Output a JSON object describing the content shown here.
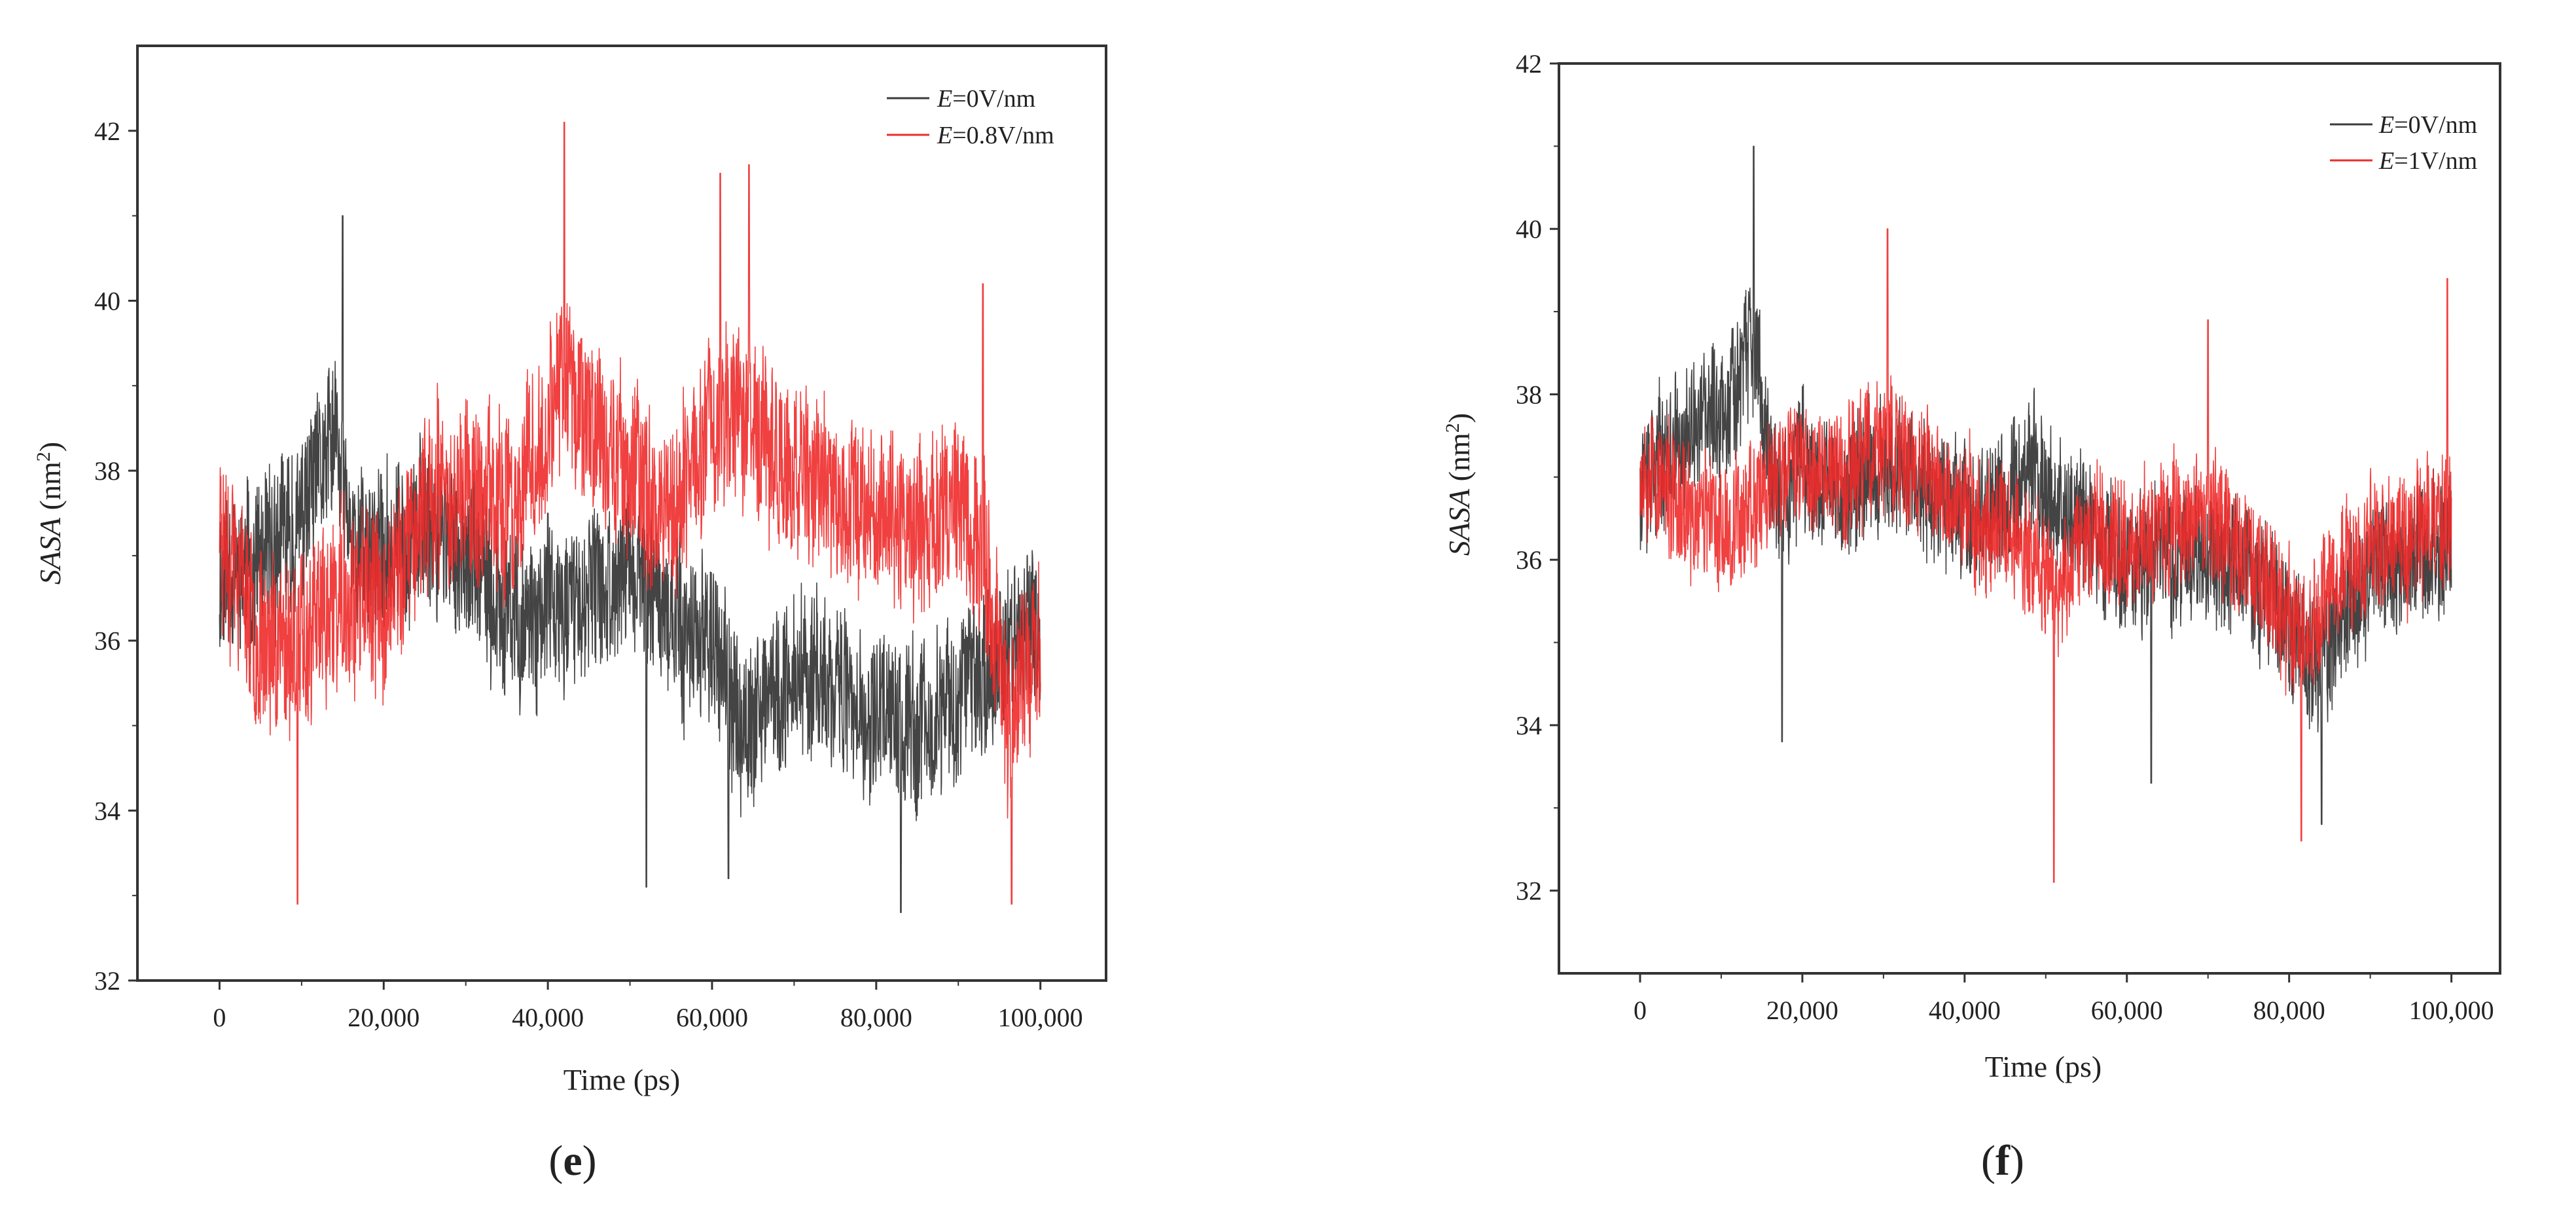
{
  "colors": {
    "series_e0": "#3a3a3a",
    "series_field": "#ee2b2b",
    "axis": "#333333",
    "background": "#ffffff"
  },
  "chart_data": [
    {
      "id": "e",
      "type": "line",
      "panel_label": "e",
      "xlabel": "Time (ps)",
      "ylabel": {
        "italic": "SASA",
        "plain": " (nm",
        "sup": "2",
        "close": ")"
      },
      "xlim": [
        -10000,
        108000
      ],
      "ylim": [
        32,
        43
      ],
      "x_ticks": [
        0,
        20000,
        40000,
        60000,
        80000,
        100000
      ],
      "x_tick_labels": [
        "0",
        "20,000",
        "40,000",
        "60,000",
        "80,000",
        "100,000"
      ],
      "y_ticks": [
        32,
        34,
        36,
        38,
        40,
        42
      ],
      "y_tick_labels": [
        "32",
        "34",
        "36",
        "38",
        "40",
        "42"
      ],
      "grid": false,
      "legend_position": "top-right",
      "series": [
        {
          "name": "E=0V/nm",
          "label_italic": "E",
          "label_rest": "=0V/nm",
          "color": "#3a3a3a",
          "x_range": [
            0,
            100000
          ],
          "noise": 1.15,
          "seed": 11,
          "anchors": [
            [
              0,
              36.8
            ],
            [
              5000,
              36.9
            ],
            [
              10000,
              37.4
            ],
            [
              14000,
              38.4
            ],
            [
              16000,
              37.2
            ],
            [
              20000,
              37.0
            ],
            [
              25000,
              37.4
            ],
            [
              30000,
              37.0
            ],
            [
              35000,
              36.2
            ],
            [
              40000,
              36.3
            ],
            [
              45000,
              36.5
            ],
            [
              50000,
              36.8
            ],
            [
              55000,
              36.2
            ],
            [
              60000,
              36.0
            ],
            [
              63000,
              35.0
            ],
            [
              70000,
              35.6
            ],
            [
              75000,
              35.5
            ],
            [
              80000,
              35.0
            ],
            [
              85000,
              35.0
            ],
            [
              90000,
              35.4
            ],
            [
              95000,
              35.8
            ],
            [
              100000,
              36.2
            ]
          ],
          "peaks": [
            [
              15000,
              41.0
            ],
            [
              40000,
              37.5
            ],
            [
              52000,
              33.1
            ],
            [
              62000,
              33.2
            ],
            [
              83000,
              32.8
            ]
          ]
        },
        {
          "name": "E=0.8V/nm",
          "label_italic": "E",
          "label_rest": "=0.8V/nm",
          "color": "#ee2b2b",
          "x_range": [
            0,
            100000
          ],
          "noise": 1.25,
          "seed": 23,
          "anchors": [
            [
              0,
              37.4
            ],
            [
              5000,
              36.0
            ],
            [
              10000,
              36.0
            ],
            [
              15000,
              36.5
            ],
            [
              20000,
              36.4
            ],
            [
              25000,
              37.6
            ],
            [
              30000,
              37.8
            ],
            [
              35000,
              37.5
            ],
            [
              40000,
              38.4
            ],
            [
              42000,
              39.3
            ],
            [
              45000,
              38.5
            ],
            [
              50000,
              38.0
            ],
            [
              55000,
              37.6
            ],
            [
              60000,
              38.6
            ],
            [
              63000,
              38.8
            ],
            [
              65000,
              38.5
            ],
            [
              70000,
              37.9
            ],
            [
              75000,
              37.7
            ],
            [
              80000,
              37.6
            ],
            [
              85000,
              37.3
            ],
            [
              90000,
              37.6
            ],
            [
              93000,
              37.0
            ],
            [
              96000,
              35.0
            ],
            [
              98000,
              35.8
            ],
            [
              100000,
              36.0
            ]
          ],
          "peaks": [
            [
              9500,
              32.9
            ],
            [
              42000,
              42.1
            ],
            [
              61000,
              41.5
            ],
            [
              64500,
              41.6
            ],
            [
              96500,
              32.9
            ],
            [
              93000,
              40.2
            ]
          ]
        }
      ]
    },
    {
      "id": "f",
      "type": "line",
      "panel_label": "f",
      "xlabel": "Time (ps)",
      "ylabel": {
        "italic": "SASA",
        "plain": " (nm",
        "sup": "2",
        "close": ")"
      },
      "xlim": [
        -10000,
        106000
      ],
      "ylim": [
        31,
        42
      ],
      "x_ticks": [
        0,
        20000,
        40000,
        60000,
        80000,
        100000
      ],
      "x_tick_labels": [
        "0",
        "20,000",
        "40,000",
        "60,000",
        "80,000",
        "100,000"
      ],
      "y_ticks": [
        32,
        34,
        36,
        38,
        40,
        42
      ],
      "y_tick_labels": [
        "32",
        "34",
        "36",
        "38",
        "40",
        "42"
      ],
      "grid": false,
      "legend_position": "top-right",
      "series": [
        {
          "name": "E=0V/nm",
          "label_italic": "E",
          "label_rest": "=0V/nm",
          "color": "#3a3a3a",
          "x_range": [
            0,
            100000
          ],
          "noise": 1.0,
          "seed": 37,
          "anchors": [
            [
              0,
              37.0
            ],
            [
              5000,
              37.4
            ],
            [
              10000,
              37.8
            ],
            [
              14000,
              38.6
            ],
            [
              17000,
              36.6
            ],
            [
              20000,
              37.2
            ],
            [
              25000,
              36.8
            ],
            [
              30000,
              37.3
            ],
            [
              35000,
              36.8
            ],
            [
              40000,
              36.6
            ],
            [
              45000,
              36.7
            ],
            [
              48000,
              37.2
            ],
            [
              50000,
              36.8
            ],
            [
              55000,
              36.4
            ],
            [
              60000,
              36.0
            ],
            [
              65000,
              36.1
            ],
            [
              70000,
              36.0
            ],
            [
              75000,
              35.9
            ],
            [
              80000,
              35.2
            ],
            [
              83000,
              34.8
            ],
            [
              87000,
              35.3
            ],
            [
              90000,
              35.8
            ],
            [
              95000,
              36.0
            ],
            [
              100000,
              36.2
            ]
          ],
          "peaks": [
            [
              14000,
              41.0
            ],
            [
              17500,
              33.8
            ],
            [
              63000,
              33.3
            ],
            [
              84000,
              32.8
            ]
          ]
        },
        {
          "name": "E=1V/nm",
          "label_italic": "E",
          "label_rest": "=1V/nm",
          "color": "#ee2b2b",
          "x_range": [
            0,
            100000
          ],
          "noise": 0.95,
          "seed": 53,
          "anchors": [
            [
              0,
              37.2
            ],
            [
              5000,
              36.6
            ],
            [
              10000,
              36.4
            ],
            [
              15000,
              36.8
            ],
            [
              20000,
              37.2
            ],
            [
              25000,
              37.0
            ],
            [
              30000,
              37.4
            ],
            [
              35000,
              37.0
            ],
            [
              40000,
              36.6
            ],
            [
              45000,
              36.4
            ],
            [
              50000,
              36.0
            ],
            [
              52000,
              35.6
            ],
            [
              55000,
              36.4
            ],
            [
              60000,
              36.2
            ],
            [
              65000,
              36.4
            ],
            [
              70000,
              36.6
            ],
            [
              75000,
              36.0
            ],
            [
              80000,
              35.2
            ],
            [
              82000,
              35.0
            ],
            [
              85000,
              35.8
            ],
            [
              90000,
              36.2
            ],
            [
              95000,
              36.3
            ],
            [
              100000,
              36.6
            ]
          ],
          "peaks": [
            [
              30500,
              40.0
            ],
            [
              51000,
              32.1
            ],
            [
              70000,
              38.9
            ],
            [
              81500,
              32.6
            ],
            [
              99500,
              39.4
            ]
          ]
        }
      ]
    }
  ]
}
